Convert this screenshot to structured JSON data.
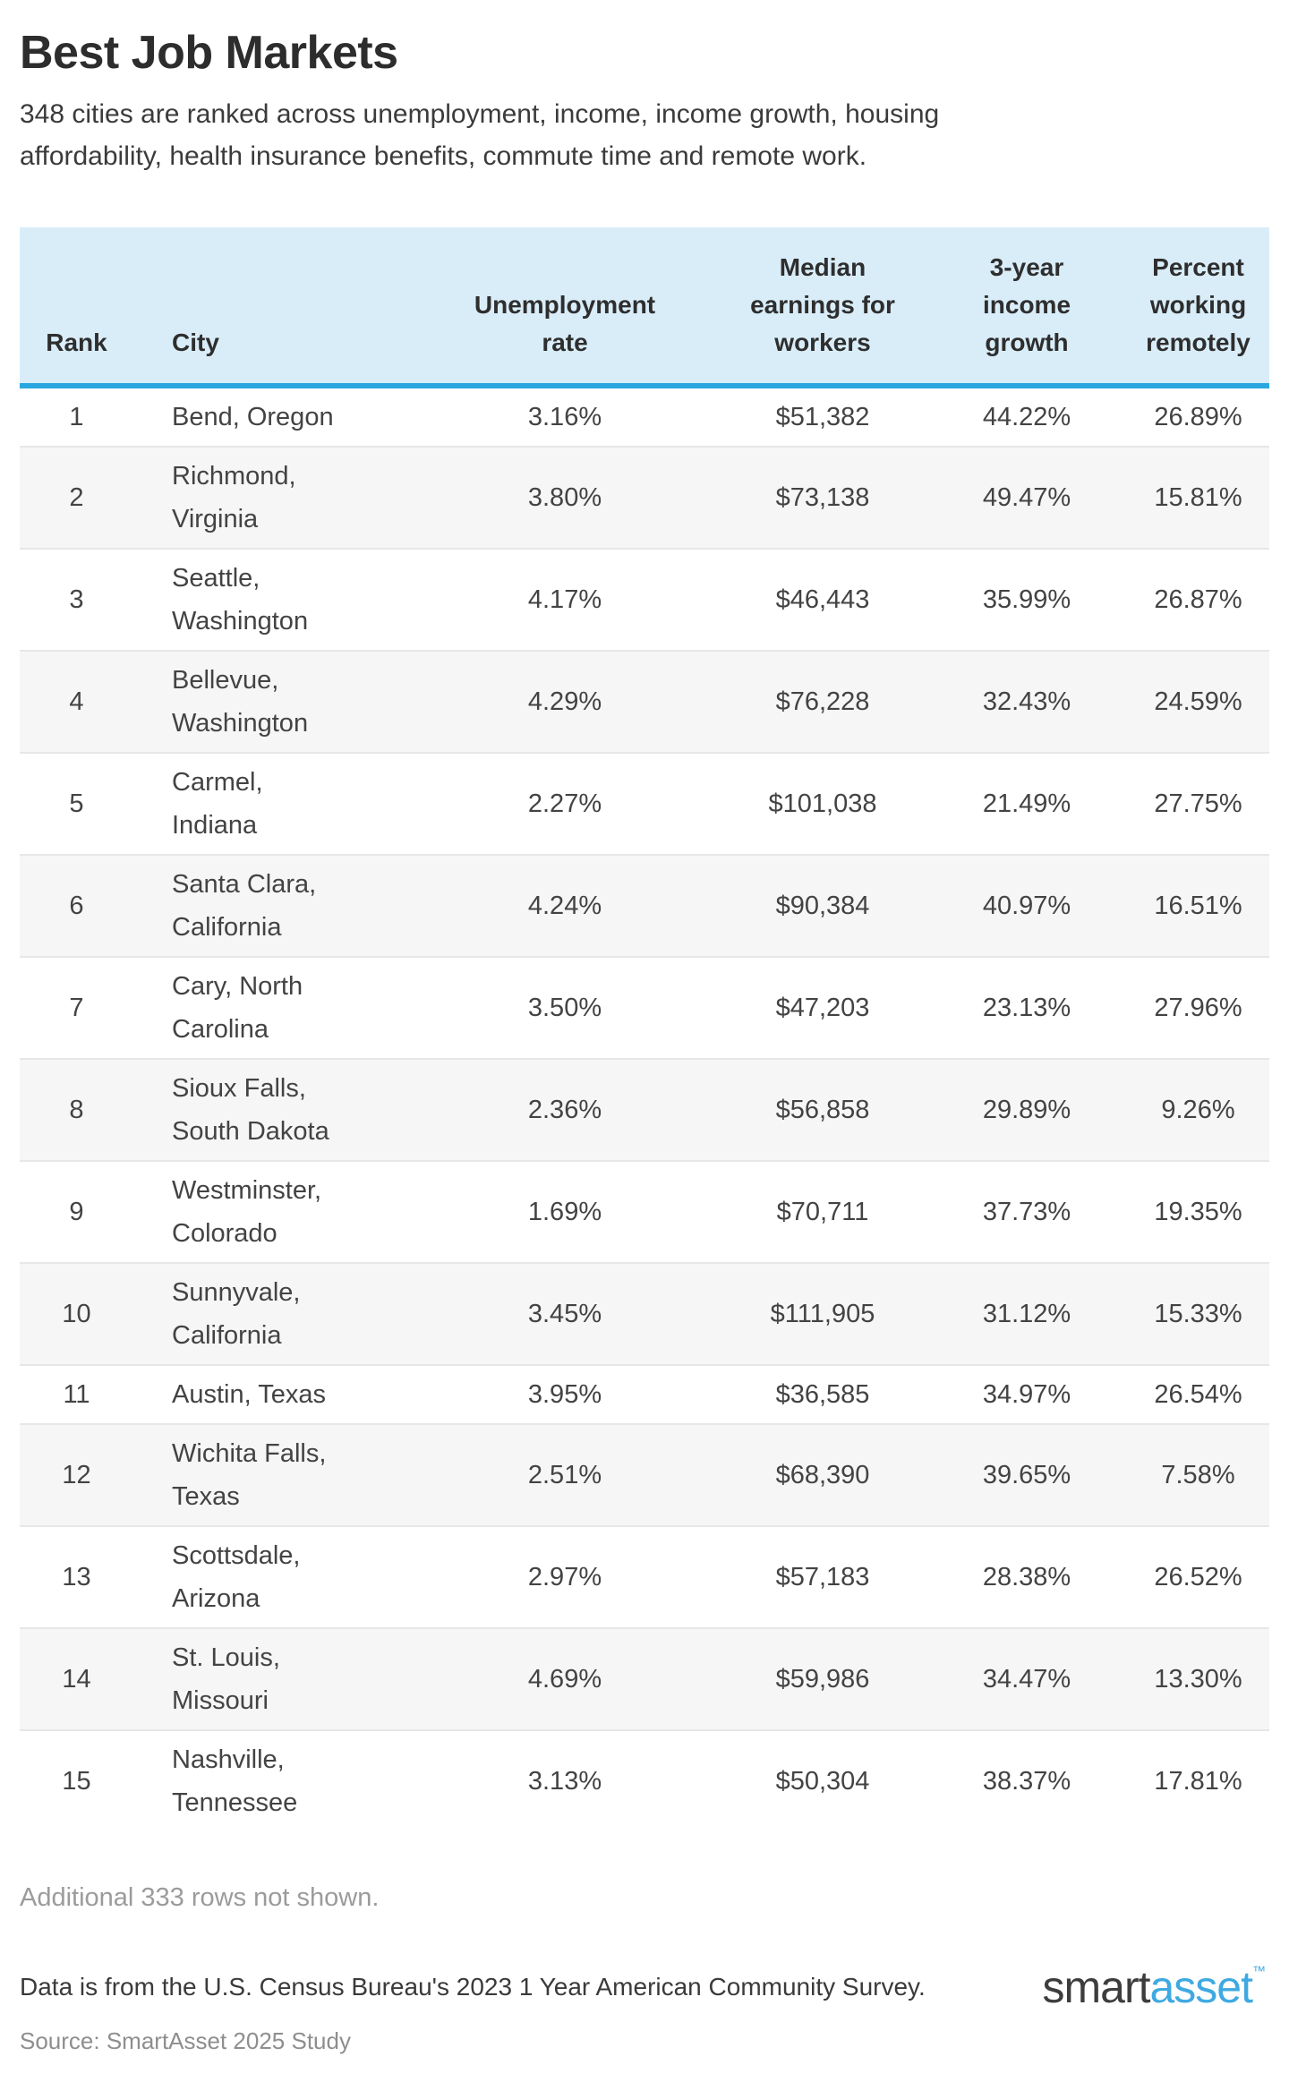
{
  "page": {
    "title": "Best Job Markets",
    "subtitle": "348 cities are ranked across unemployment, income, income growth, housing\naffordability, health insurance benefits, commute time and remote work.",
    "truncation_note": "Additional 333 rows not shown.",
    "data_note": "Data is from the U.S. Census Bureau's 2023 1 Year American Community Survey.",
    "source_note": "Source: SmartAsset 2025 Study",
    "logo": {
      "part1": "smart",
      "part2": "asset",
      "trademark": "™"
    }
  },
  "colors": {
    "header_background": "#d9edf9",
    "header_border_blue": "#2aa7de",
    "stripe_gray": "#f6f6f6",
    "logo_blue": "#3fa9e1",
    "body_text": "#434343",
    "muted_text": "#9b9b9b"
  },
  "chart_data": {
    "type": "table",
    "title": "Best Job Markets",
    "columns": [
      {
        "key": "rank",
        "label": "Rank",
        "align": "center"
      },
      {
        "key": "city",
        "label": "City",
        "align": "left"
      },
      {
        "key": "unemployment",
        "label": "Unemployment\nrate",
        "align": "center"
      },
      {
        "key": "earnings",
        "label": "Median\nearnings for\nworkers",
        "align": "center"
      },
      {
        "key": "growth",
        "label": "3-year\nincome\ngrowth",
        "align": "center"
      },
      {
        "key": "remote",
        "label": "Percent\nworking\nremotely",
        "align": "center"
      }
    ],
    "rows": [
      {
        "rank": "1",
        "city": "Bend, Oregon",
        "unemployment": "3.16%",
        "earnings": "$51,382",
        "growth": "44.22%",
        "remote": "26.89%"
      },
      {
        "rank": "2",
        "city": "Richmond,\nVirginia",
        "unemployment": "3.80%",
        "earnings": "$73,138",
        "growth": "49.47%",
        "remote": "15.81%"
      },
      {
        "rank": "3",
        "city": "Seattle,\nWashington",
        "unemployment": "4.17%",
        "earnings": "$46,443",
        "growth": "35.99%",
        "remote": "26.87%"
      },
      {
        "rank": "4",
        "city": "Bellevue,\nWashington",
        "unemployment": "4.29%",
        "earnings": "$76,228",
        "growth": "32.43%",
        "remote": "24.59%"
      },
      {
        "rank": "5",
        "city": "Carmel,\nIndiana",
        "unemployment": "2.27%",
        "earnings": "$101,038",
        "growth": "21.49%",
        "remote": "27.75%"
      },
      {
        "rank": "6",
        "city": "Santa Clara,\nCalifornia",
        "unemployment": "4.24%",
        "earnings": "$90,384",
        "growth": "40.97%",
        "remote": "16.51%"
      },
      {
        "rank": "7",
        "city": "Cary, North\nCarolina",
        "unemployment": "3.50%",
        "earnings": "$47,203",
        "growth": "23.13%",
        "remote": "27.96%"
      },
      {
        "rank": "8",
        "city": "Sioux Falls,\nSouth Dakota",
        "unemployment": "2.36%",
        "earnings": "$56,858",
        "growth": "29.89%",
        "remote": "9.26%"
      },
      {
        "rank": "9",
        "city": "Westminster,\nColorado",
        "unemployment": "1.69%",
        "earnings": "$70,711",
        "growth": "37.73%",
        "remote": "19.35%"
      },
      {
        "rank": "10",
        "city": "Sunnyvale,\nCalifornia",
        "unemployment": "3.45%",
        "earnings": "$111,905",
        "growth": "31.12%",
        "remote": "15.33%"
      },
      {
        "rank": "11",
        "city": "Austin, Texas",
        "unemployment": "3.95%",
        "earnings": "$36,585",
        "growth": "34.97%",
        "remote": "26.54%"
      },
      {
        "rank": "12",
        "city": "Wichita Falls,\nTexas",
        "unemployment": "2.51%",
        "earnings": "$68,390",
        "growth": "39.65%",
        "remote": "7.58%"
      },
      {
        "rank": "13",
        "city": "Scottsdale,\nArizona",
        "unemployment": "2.97%",
        "earnings": "$57,183",
        "growth": "28.38%",
        "remote": "26.52%"
      },
      {
        "rank": "14",
        "city": "St. Louis,\nMissouri",
        "unemployment": "4.69%",
        "earnings": "$59,986",
        "growth": "34.47%",
        "remote": "13.30%"
      },
      {
        "rank": "15",
        "city": "Nashville,\nTennessee",
        "unemployment": "3.13%",
        "earnings": "$50,304",
        "growth": "38.37%",
        "remote": "17.81%"
      }
    ]
  }
}
